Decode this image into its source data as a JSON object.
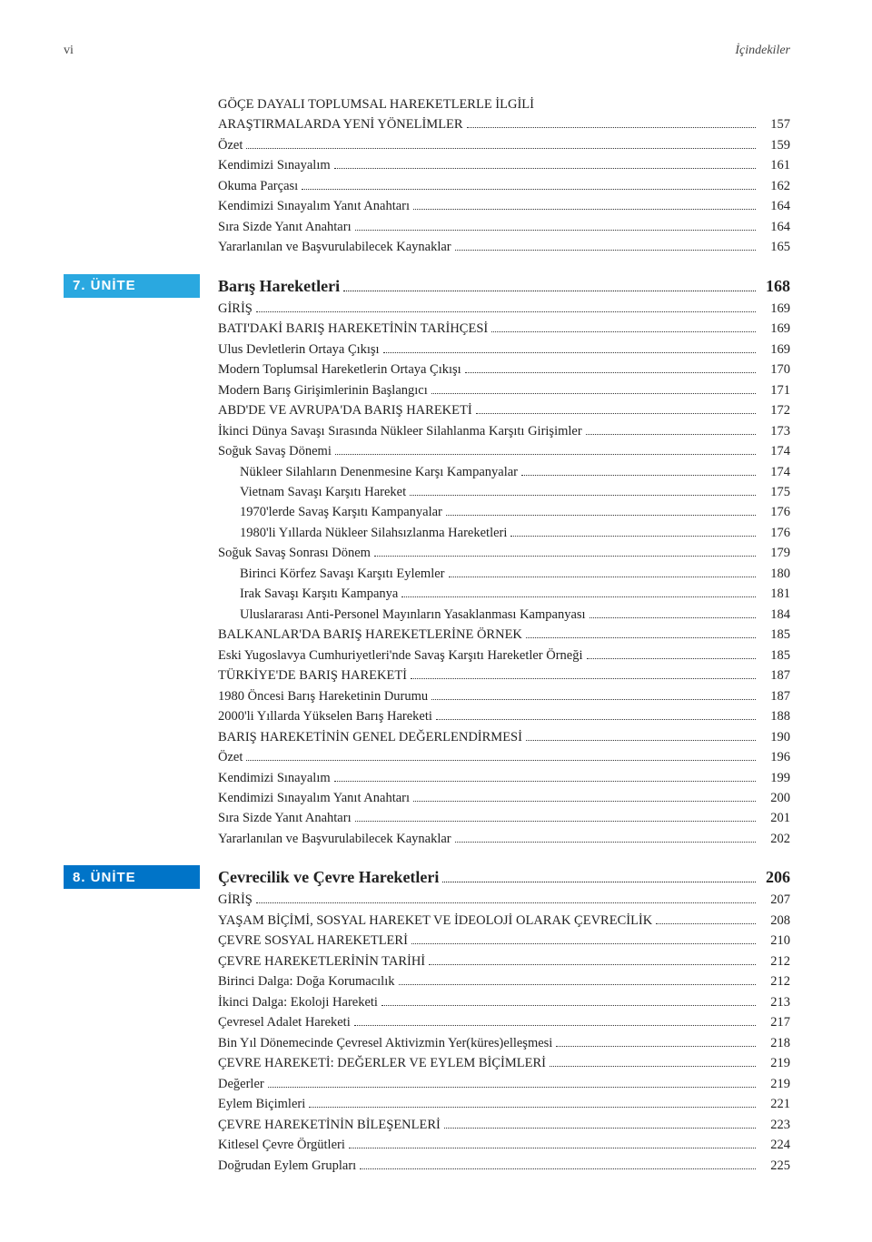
{
  "page_number": "vi",
  "running_head": "İçindekiler",
  "intro_heading": "GÖÇE DAYALI TOPLUMSAL HAREKETLERLE İLGİLİ ARAŞTIRMALARDA YENİ YÖNELİMLER",
  "intro_heading_page": "157",
  "intro_items": [
    {
      "label": "Özet",
      "page": "159",
      "indent": 0
    },
    {
      "label": "Kendimizi Sınayalım",
      "page": "161",
      "indent": 0
    },
    {
      "label": "Okuma Parçası",
      "page": "162",
      "indent": 0
    },
    {
      "label": "Kendimizi Sınayalım Yanıt Anahtarı",
      "page": "164",
      "indent": 0
    },
    {
      "label": "Sıra Sizde Yanıt Anahtarı",
      "page": "164",
      "indent": 0
    },
    {
      "label": "Yararlanılan ve Başvurulabilecek Kaynaklar",
      "page": "165",
      "indent": 0
    }
  ],
  "units": [
    {
      "badge": "7. ÜNİTE",
      "badge_color": "#2aa8e0",
      "title": "Barış Hareketleri",
      "title_page": "168",
      "items": [
        {
          "label": "GİRİŞ",
          "page": "169",
          "indent": 0
        },
        {
          "label": "BATI'DAKİ BARIŞ HAREKETİNİN TARİHÇESİ",
          "page": "169",
          "indent": 0
        },
        {
          "label": "Ulus Devletlerin Ortaya Çıkışı",
          "page": "169",
          "indent": 0
        },
        {
          "label": "Modern Toplumsal Hareketlerin Ortaya Çıkışı",
          "page": "170",
          "indent": 0
        },
        {
          "label": "Modern Barış Girişimlerinin Başlangıcı",
          "page": "171",
          "indent": 0
        },
        {
          "label": "ABD'DE VE AVRUPA'DA BARIŞ HAREKETİ",
          "page": "172",
          "indent": 0
        },
        {
          "label": "İkinci Dünya Savaşı Sırasında Nükleer Silahlanma Karşıtı Girişimler",
          "page": "173",
          "indent": 0
        },
        {
          "label": "Soğuk Savaş Dönemi",
          "page": "174",
          "indent": 0
        },
        {
          "label": "Nükleer Silahların Denenmesine Karşı Kampanyalar",
          "page": "174",
          "indent": 1
        },
        {
          "label": "Vietnam Savaşı Karşıtı Hareket",
          "page": "175",
          "indent": 1
        },
        {
          "label": "1970'lerde Savaş Karşıtı Kampanyalar",
          "page": "176",
          "indent": 1
        },
        {
          "label": "1980'li Yıllarda Nükleer Silahsızlanma Hareketleri",
          "page": "176",
          "indent": 1
        },
        {
          "label": "Soğuk Savaş Sonrası Dönem",
          "page": "179",
          "indent": 0
        },
        {
          "label": "Birinci Körfez Savaşı Karşıtı Eylemler",
          "page": "180",
          "indent": 1
        },
        {
          "label": "Irak Savaşı Karşıtı Kampanya",
          "page": "181",
          "indent": 1
        },
        {
          "label": "Uluslararası Anti-Personel Mayınların Yasaklanması Kampanyası",
          "page": "184",
          "indent": 1
        },
        {
          "label": "BALKANLAR'DA BARIŞ HAREKETLERİNE ÖRNEK",
          "page": "185",
          "indent": 0
        },
        {
          "label": "Eski Yugoslavya Cumhuriyetleri'nde Savaş Karşıtı Hareketler Örneği",
          "page": "185",
          "indent": 0
        },
        {
          "label": "TÜRKİYE'DE BARIŞ HAREKETİ",
          "page": "187",
          "indent": 0
        },
        {
          "label": "1980 Öncesi Barış Hareketinin Durumu",
          "page": "187",
          "indent": 0
        },
        {
          "label": "2000'li Yıllarda Yükselen Barış Hareketi",
          "page": "188",
          "indent": 0
        },
        {
          "label": "BARIŞ HAREKETİNİN GENEL DEĞERLENDİRMESİ",
          "page": "190",
          "indent": 0
        },
        {
          "label": "Özet",
          "page": "196",
          "indent": 0
        },
        {
          "label": "Kendimizi Sınayalım",
          "page": "199",
          "indent": 0
        },
        {
          "label": "Kendimizi Sınayalım Yanıt Anahtarı",
          "page": "200",
          "indent": 0
        },
        {
          "label": "Sıra Sizde Yanıt Anahtarı",
          "page": "201",
          "indent": 0
        },
        {
          "label": "Yararlanılan ve Başvurulabilecek Kaynaklar",
          "page": "202",
          "indent": 0
        }
      ]
    },
    {
      "badge": "8. ÜNİTE",
      "badge_color": "#0074c8",
      "title": "Çevrecilik ve Çevre Hareketleri",
      "title_page": "206",
      "items": [
        {
          "label": "GİRİŞ",
          "page": "207",
          "indent": 0
        },
        {
          "label": "YAŞAM BİÇİMİ, SOSYAL HAREKET VE İDEOLOJİ OLARAK ÇEVRECİLİK",
          "page": "208",
          "indent": 0
        },
        {
          "label": "ÇEVRE SOSYAL HAREKETLERİ",
          "page": "210",
          "indent": 0
        },
        {
          "label": "ÇEVRE HAREKETLERİNİN TARİHİ",
          "page": "212",
          "indent": 0
        },
        {
          "label": "Birinci Dalga: Doğa Korumacılık",
          "page": "212",
          "indent": 0
        },
        {
          "label": "İkinci Dalga: Ekoloji Hareketi",
          "page": "213",
          "indent": 0
        },
        {
          "label": "Çevresel Adalet Hareketi",
          "page": "217",
          "indent": 0
        },
        {
          "label": "Bin Yıl Dönemecinde Çevresel Aktivizmin Yer(küres)elleşmesi",
          "page": "218",
          "indent": 0
        },
        {
          "label": "ÇEVRE HAREKETİ: DEĞERLER VE EYLEM BİÇİMLERİ",
          "page": "219",
          "indent": 0
        },
        {
          "label": "Değerler",
          "page": "219",
          "indent": 0
        },
        {
          "label": "Eylem Biçimleri",
          "page": "221",
          "indent": 0
        },
        {
          "label": "ÇEVRE HAREKETİNİN BİLEŞENLERİ",
          "page": "223",
          "indent": 0
        },
        {
          "label": "Kitlesel Çevre Örgütleri",
          "page": "224",
          "indent": 0
        },
        {
          "label": "Doğrudan Eylem Grupları",
          "page": "225",
          "indent": 0
        }
      ]
    }
  ]
}
